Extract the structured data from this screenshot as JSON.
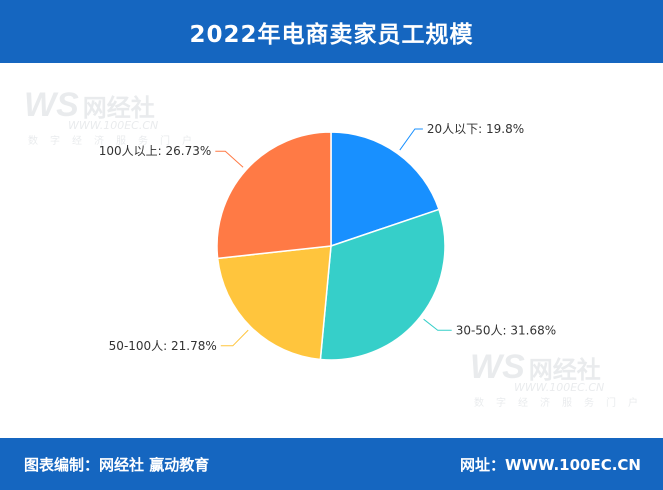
{
  "header": {
    "title": "2022年电商卖家员工规模"
  },
  "footer": {
    "left": "图表编制：网经社 赢动教育",
    "right": "网址：WWW.100EC.CN"
  },
  "watermark": {
    "logo": "WS",
    "name": "网经社",
    "url": "WWW.100EC.CN",
    "sub": "数字经济服务门户"
  },
  "colors": {
    "header_bg": "#1566c0"
  },
  "chart_data": {
    "type": "pie",
    "title": "2022年电商卖家员工规模",
    "slices": [
      {
        "label": "20人以下",
        "value": 19.8,
        "display": "20人以下: 19.8%",
        "color": "#1890ff"
      },
      {
        "label": "30-50人",
        "value": 31.68,
        "display": "30-50人: 31.68%",
        "color": "#36cfc9"
      },
      {
        "label": "50-100人",
        "value": 21.78,
        "display": "50-100人: 21.78%",
        "color": "#ffc53d"
      },
      {
        "label": "100人以上",
        "value": 26.73,
        "display": "100人以上: 26.73%",
        "color": "#ff7a45"
      }
    ],
    "start": "12 o'clock",
    "direction": "clockwise"
  }
}
